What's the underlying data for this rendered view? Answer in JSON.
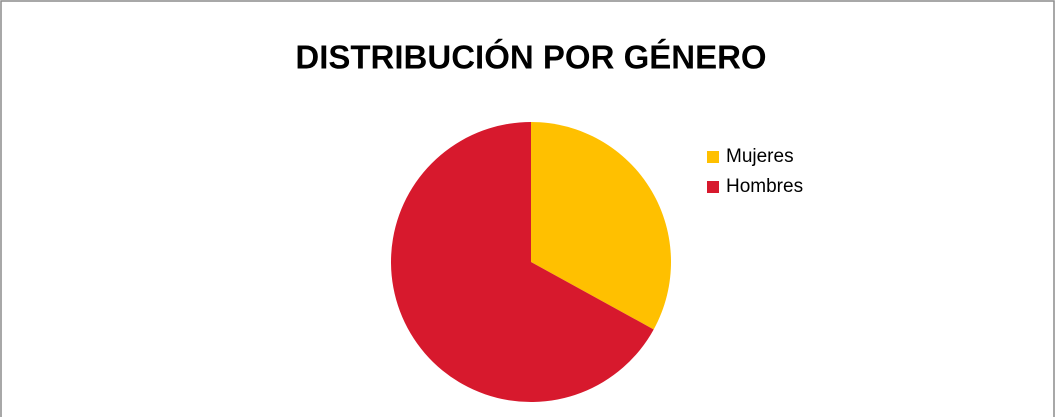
{
  "chart_data": {
    "type": "pie",
    "title": "DISTRIBUCIÓN POR GÉNERO",
    "categories": [
      "Mujeres",
      "Hombres"
    ],
    "values": [
      33,
      67
    ],
    "colors": [
      "#ffc000",
      "#d7192d"
    ],
    "legend": "right"
  }
}
